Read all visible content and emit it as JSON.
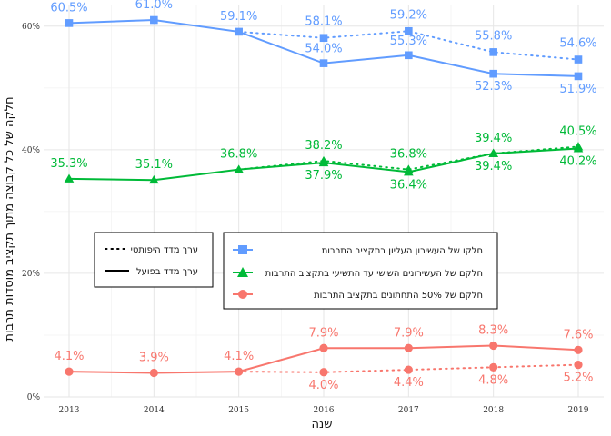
{
  "chart_data": {
    "type": "line",
    "xlabel": "שנה",
    "ylabel": "חלקה של כל קבוצה מתוך תקציב מוסדות תרבות",
    "x": [
      2013,
      2014,
      2015,
      2016,
      2017,
      2018,
      2019
    ],
    "x_ticks": [
      "2013",
      "2014",
      "2015",
      "2016",
      "2017",
      "2018",
      "2019"
    ],
    "y_ticks": [
      "0%",
      "20%",
      "40%",
      "60%"
    ],
    "y_tick_values": [
      0,
      20,
      40,
      60
    ],
    "ylim": [
      0,
      63.5
    ],
    "grid": true,
    "series": [
      {
        "name": "חלקו של העשירון העליון בתקציב התרבות",
        "color": "#619CFF",
        "marker": "square",
        "actual": [
          60.5,
          61.0,
          59.1,
          54.0,
          55.3,
          52.3,
          51.9
        ],
        "hypothetical": [
          60.5,
          61.0,
          59.1,
          58.1,
          59.2,
          55.8,
          54.6
        ],
        "actual_labels": [
          "60.5%",
          "61.0%",
          "59.1%",
          "54.0%",
          "55.3%",
          "52.3%",
          "51.9%"
        ],
        "hypothetical_labels": [
          "",
          "",
          "",
          "58.1%",
          "59.2%",
          "55.8%",
          "54.6%"
        ]
      },
      {
        "name": "חלקם של העשירונים השישי עד התשיעי בתקציב התרבות",
        "color": "#00BA38",
        "marker": "triangle",
        "actual": [
          35.3,
          35.1,
          36.8,
          37.9,
          36.4,
          39.4,
          40.2
        ],
        "hypothetical": [
          35.3,
          35.1,
          36.8,
          38.2,
          36.8,
          39.4,
          40.5
        ],
        "actual_labels": [
          "35.3%",
          "35.1%",
          "36.8%",
          "37.9%",
          "36.4%",
          "39.4%",
          "40.2%"
        ],
        "hypothetical_labels": [
          "",
          "",
          "",
          "38.2%",
          "36.8%",
          "39.4%",
          "40.5%"
        ]
      },
      {
        "name": "חלקם של 50% התחתונים בתקציב התרבות",
        "color": "#F8766D",
        "marker": "circle",
        "actual": [
          4.1,
          3.9,
          4.1,
          7.9,
          7.9,
          8.3,
          7.6
        ],
        "hypothetical": [
          4.1,
          3.9,
          4.1,
          4.0,
          4.4,
          4.8,
          5.2
        ],
        "actual_labels": [
          "4.1%",
          "3.9%",
          "4.1%",
          "7.9%",
          "7.9%",
          "8.3%",
          "7.6%"
        ],
        "hypothetical_labels": [
          "",
          "",
          "",
          "4.0%",
          "4.4%",
          "4.8%",
          "5.2%"
        ]
      }
    ],
    "linetype_legend": [
      {
        "label": "ערך מדד היפותטי",
        "style": "dotted"
      },
      {
        "label": "ערך מדד בפועל",
        "style": "solid"
      }
    ]
  }
}
